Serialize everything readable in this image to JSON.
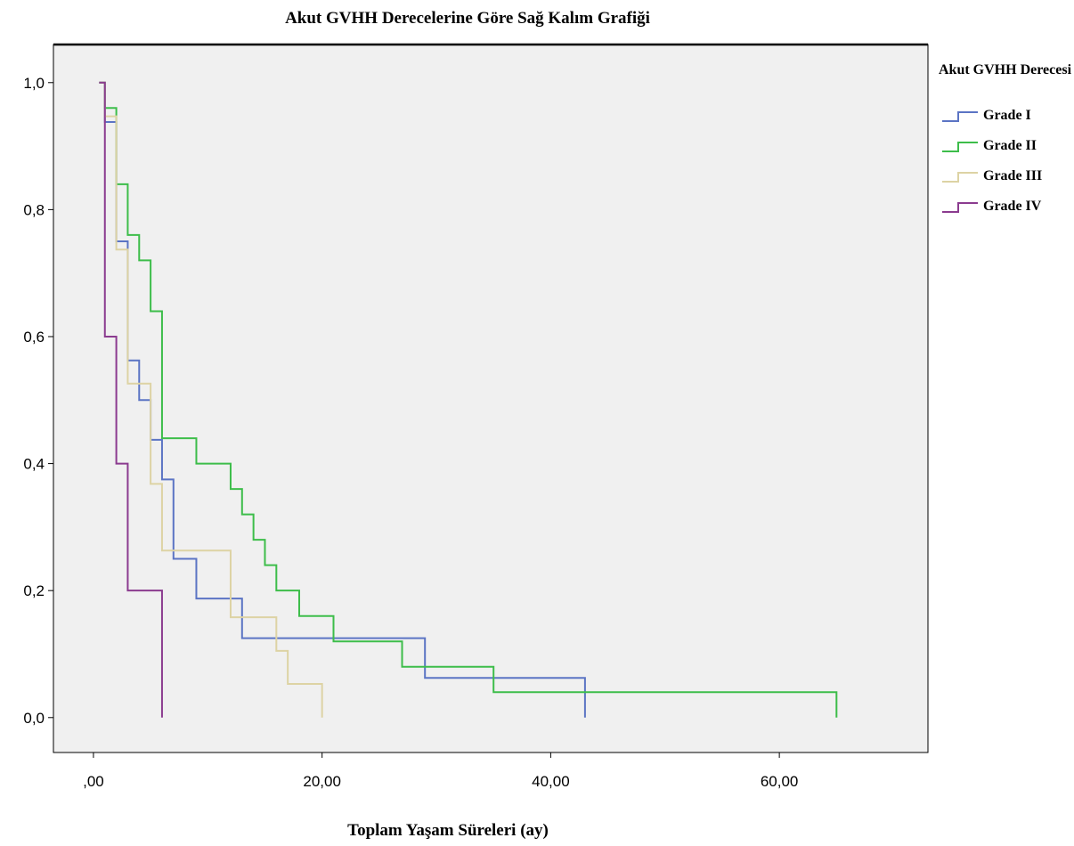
{
  "chart_data": {
    "type": "line",
    "title": "Akut GVHH Derecelerine Göre Sağ Kalım Grafiği",
    "xlabel": "Toplam Yaşam Süreleri (ay)",
    "ylabel": "",
    "xlim": [
      -3.5,
      73
    ],
    "ylim": [
      -0.055,
      1.06
    ],
    "x_ticks": [
      0,
      20,
      40,
      60
    ],
    "x_tick_labels": [
      ",00",
      "20,00",
      "40,00",
      "60,00"
    ],
    "y_ticks": [
      0,
      0.2,
      0.4,
      0.6,
      0.8,
      1.0
    ],
    "y_tick_labels": [
      "0,0",
      "0,2",
      "0,4",
      "0,6",
      "0,8",
      "1,0"
    ],
    "grid": false,
    "legend_title": "Akut GVHH Derecesi",
    "legend_position": "right",
    "step": true,
    "series": [
      {
        "name": "Grade I",
        "color": "#5b74c4",
        "x": [
          0.5,
          1.0,
          2.0,
          3.0,
          4.0,
          5.0,
          6.0,
          7.0,
          9.0,
          13.0,
          29.0,
          43.0,
          43.0
        ],
        "y": [
          1.0,
          0.938,
          0.75,
          0.5625,
          0.5,
          0.4375,
          0.375,
          0.25,
          0.1875,
          0.125,
          0.0625,
          0.0625,
          0.0
        ]
      },
      {
        "name": "Grade II",
        "color": "#3dbd4a",
        "x": [
          0.5,
          1.0,
          2.0,
          3.0,
          4.0,
          5.0,
          6.0,
          9.0,
          12.0,
          13.0,
          14.0,
          15.0,
          16.0,
          18.0,
          21.0,
          27.0,
          29.0,
          35.0,
          65.0,
          65.0
        ],
        "y": [
          1.0,
          0.96,
          0.84,
          0.76,
          0.72,
          0.64,
          0.44,
          0.4,
          0.36,
          0.32,
          0.28,
          0.24,
          0.2,
          0.16,
          0.12,
          0.08,
          0.08,
          0.04,
          0.04,
          0.0
        ],
        "censored_x": [
          65.0
        ]
      },
      {
        "name": "Grade III",
        "color": "#ddd3a4",
        "x": [
          0.5,
          1.0,
          2.0,
          3.0,
          5.0,
          6.0,
          12.0,
          16.0,
          17.0,
          20.0,
          20.0
        ],
        "y": [
          1.0,
          0.947,
          0.737,
          0.526,
          0.368,
          0.263,
          0.158,
          0.105,
          0.053,
          0.053,
          0.0
        ]
      },
      {
        "name": "Grade IV",
        "color": "#8b3b8f",
        "x": [
          0.5,
          1.0,
          2.0,
          3.0,
          6.0,
          6.0
        ],
        "y": [
          1.0,
          0.6,
          0.4,
          0.2,
          0.2,
          0.0
        ]
      }
    ]
  }
}
